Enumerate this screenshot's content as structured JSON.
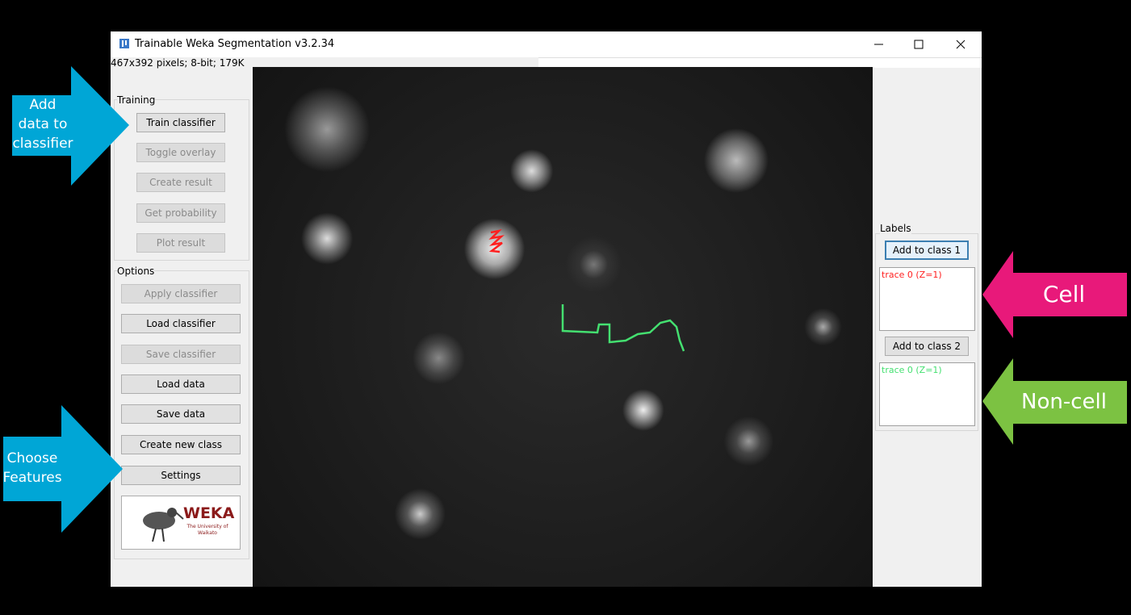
{
  "window": {
    "title": "Trainable Weka Segmentation v3.2.34",
    "status": "467x392 pixels; 8-bit; 179K"
  },
  "training": {
    "label": "Training",
    "buttons": [
      {
        "label": "Train classifier",
        "enabled": true
      },
      {
        "label": "Toggle overlay",
        "enabled": false
      },
      {
        "label": "Create result",
        "enabled": false
      },
      {
        "label": "Get probability",
        "enabled": false
      },
      {
        "label": "Plot result",
        "enabled": false
      }
    ]
  },
  "options": {
    "label": "Options",
    "buttons": [
      {
        "label": "Apply classifier",
        "enabled": false
      },
      {
        "label": "Load classifier",
        "enabled": true
      },
      {
        "label": "Save classifier",
        "enabled": false
      },
      {
        "label": "Load data",
        "enabled": true
      },
      {
        "label": "Save data",
        "enabled": true
      },
      {
        "label": "Create new class",
        "enabled": true
      },
      {
        "label": "Settings",
        "enabled": true
      }
    ]
  },
  "logo": {
    "name": "WEKA",
    "subtitle": "The University of Waikato"
  },
  "labels": {
    "label": "Labels",
    "classes": [
      {
        "button": "Add to class 1",
        "trace": "trace 0 (Z=1)",
        "color": "#ff2020"
      },
      {
        "button": "Add to class 2",
        "trace": "trace 0 (Z=1)",
        "color": "#44e070"
      }
    ]
  },
  "callouts": [
    {
      "text": "Add data to classifier",
      "color": "#00a6d6"
    },
    {
      "text": "Choose Features",
      "color": "#00a6d6"
    },
    {
      "text": "Cell",
      "color": "#e8197a"
    },
    {
      "text": "Non-cell",
      "color": "#7cc242"
    }
  ]
}
